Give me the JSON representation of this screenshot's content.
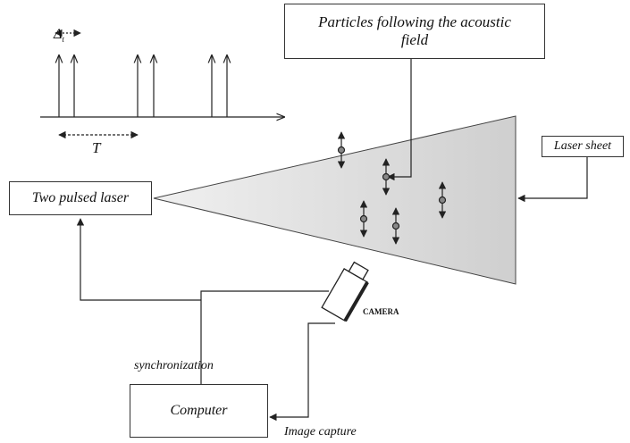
{
  "pulse_diagram": {
    "delta_symbol": "Δ",
    "delta_subscript": "t",
    "period": "T"
  },
  "particles_box": {
    "label": "Particles following the acoustic field"
  },
  "laser_sheet_box": {
    "label": "Laser sheet"
  },
  "laser_box": {
    "label": "Two pulsed laser"
  },
  "camera": {
    "label": "CAMERA"
  },
  "computer_box": {
    "label": "Computer"
  },
  "connections": {
    "sync_label": "synchronization",
    "capture_label": "Image capture"
  }
}
